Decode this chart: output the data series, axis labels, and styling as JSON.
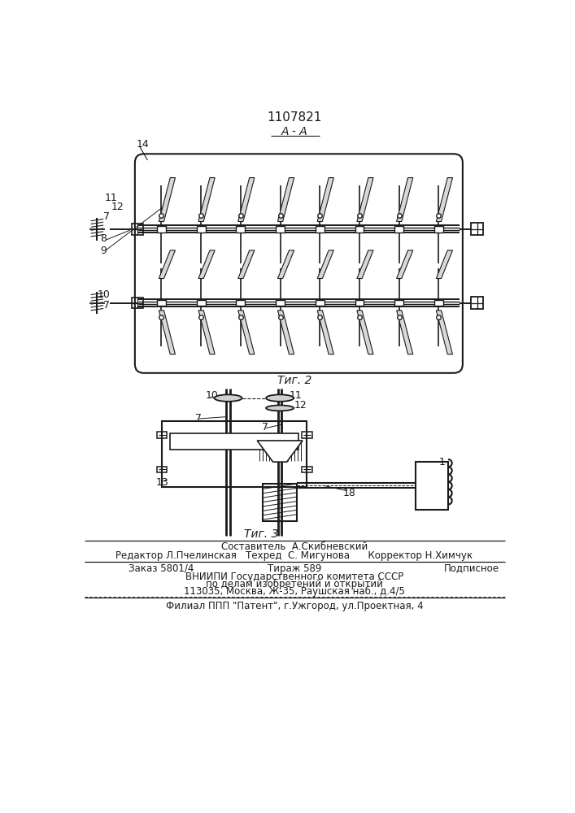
{
  "patent_number": "1107821",
  "section_label": "А - А",
  "fig2_label": "Τиг. 2",
  "fig3_label": "Τиг. 3",
  "footer_line1": "Составитель  А.Скибневский",
  "footer_line2": "Редактор Л.Пчелинская   Техред  С. Мигунова      Корректор Н.Химчук",
  "footer_line3a": "Заказ 5801/4",
  "footer_line3b": "Тираж 589",
  "footer_line3c": "Подписное",
  "footer_line4": "ВНИИПИ Государственного комитета СССР",
  "footer_line5": "по делам изобретений и открытий",
  "footer_line6": "113035, Москва, Ж-35, Раушская наб., д.4/5",
  "footer_line7": "Филиал ППП \"Патент\", г.Ужгород, ул.Проектная, 4",
  "bg_color": "#ffffff",
  "line_color": "#1a1a1a"
}
